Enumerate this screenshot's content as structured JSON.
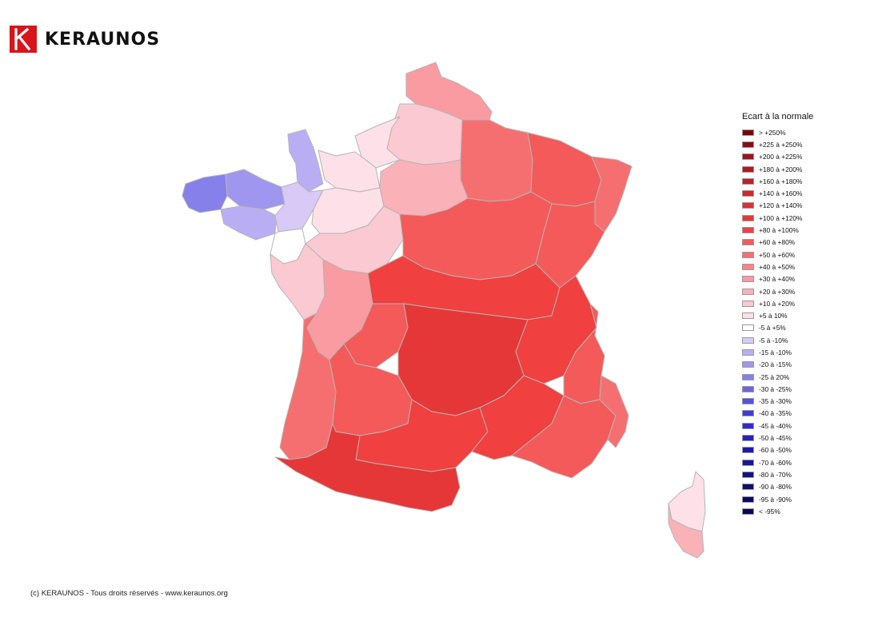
{
  "brand": {
    "name": "KERAUNOS",
    "logo_color": "#d7151b",
    "logo_icon": "keraunos-k-icon"
  },
  "legend": {
    "title": "Ecart à la normale",
    "items": [
      {
        "label": "> +250%",
        "color": "#7a0008"
      },
      {
        "label": "+225 à +250%",
        "color": "#8c0a12"
      },
      {
        "label": "+200 à +225%",
        "color": "#9e1218"
      },
      {
        "label": "+180 à +200%",
        "color": "#ad1a1f"
      },
      {
        "label": "+160 à +180%",
        "color": "#bc2126"
      },
      {
        "label": "+140 à +160%",
        "color": "#cb2a2e"
      },
      {
        "label": "+120 à +140%",
        "color": "#d93134"
      },
      {
        "label": "+100 à +120%",
        "color": "#e63738"
      },
      {
        "label": "+80 à +100%",
        "color": "#f0403f"
      },
      {
        "label": "+60 à +80%",
        "color": "#f45a5a"
      },
      {
        "label": "+50 à +60%",
        "color": "#f66f70"
      },
      {
        "label": "+40 à +50%",
        "color": "#f88487"
      },
      {
        "label": "+30 à +40%",
        "color": "#f99ba0"
      },
      {
        "label": "+20 à +30%",
        "color": "#fab1b8"
      },
      {
        "label": "+10 à +20%",
        "color": "#fbc9d1"
      },
      {
        "label": "+5 à 10%",
        "color": "#fde0e8"
      },
      {
        "label": "-5 à +5%",
        "color": "#ffffff"
      },
      {
        "label": "-5 à -10%",
        "color": "#d9c9f6"
      },
      {
        "label": "-15 à -10%",
        "color": "#b9aef4"
      },
      {
        "label": "-20 à -15%",
        "color": "#9f96ef"
      },
      {
        "label": "-25 à 20%",
        "color": "#8580ea"
      },
      {
        "label": "-30 à -25%",
        "color": "#6a66e4"
      },
      {
        "label": "-35 à -30%",
        "color": "#5450df"
      },
      {
        "label": "-40 à -35%",
        "color": "#3f3bd8"
      },
      {
        "label": "-45 à -40%",
        "color": "#2f2bcc"
      },
      {
        "label": "-50 à -45%",
        "color": "#2422bd"
      },
      {
        "label": "-60 à -50%",
        "color": "#1c1aab"
      },
      {
        "label": "-70 à -60%",
        "color": "#161598"
      },
      {
        "label": "-80 à -70%",
        "color": "#111184"
      },
      {
        "label": "-90 à -80%",
        "color": "#0d0d72"
      },
      {
        "label": "-95 à -90%",
        "color": "#0a0a62"
      },
      {
        "label": "< -95%",
        "color": "#070752"
      }
    ]
  },
  "map": {
    "regions": [
      {
        "name": "nord",
        "color": "#f99ba0"
      },
      {
        "name": "picardie",
        "color": "#fbc9d1"
      },
      {
        "name": "champagne",
        "color": "#f66f70"
      },
      {
        "name": "lorraine",
        "color": "#f45a5a"
      },
      {
        "name": "alsace",
        "color": "#f66f70"
      },
      {
        "name": "normandie-haute",
        "color": "#fde0e8"
      },
      {
        "name": "normandie-basse",
        "color": "#fde0e8"
      },
      {
        "name": "manche",
        "color": "#b9aef4"
      },
      {
        "name": "bretagne-nord",
        "color": "#9f96ef"
      },
      {
        "name": "bretagne-finistere",
        "color": "#8580ea"
      },
      {
        "name": "bretagne-sud",
        "color": "#b9aef4"
      },
      {
        "name": "mayenne-sarthe",
        "color": "#d9c9f6"
      },
      {
        "name": "loire-atlantique",
        "color": "#ffffff"
      },
      {
        "name": "ile-de-france",
        "color": "#fab1b8"
      },
      {
        "name": "centre-nord",
        "color": "#fde0e8"
      },
      {
        "name": "centre-sud",
        "color": "#fbc9d1"
      },
      {
        "name": "vendee-charentes",
        "color": "#fbc9d1"
      },
      {
        "name": "poitou",
        "color": "#f99ba0"
      },
      {
        "name": "bourgogne",
        "color": "#f45a5a"
      },
      {
        "name": "franche-comte",
        "color": "#f45a5a"
      },
      {
        "name": "auvergne-nord",
        "color": "#f0403f"
      },
      {
        "name": "limousin",
        "color": "#f45a5a"
      },
      {
        "name": "rhone-alpes",
        "color": "#f0403f"
      },
      {
        "name": "alpes",
        "color": "#f45a5a"
      },
      {
        "name": "massif-central",
        "color": "#e63738"
      },
      {
        "name": "aquitaine-cote",
        "color": "#f66f70"
      },
      {
        "name": "aquitaine-interieur",
        "color": "#f45a5a"
      },
      {
        "name": "midi-pyrenees",
        "color": "#f0403f"
      },
      {
        "name": "pyrenees",
        "color": "#e63738"
      },
      {
        "name": "languedoc",
        "color": "#f0403f"
      },
      {
        "name": "provence",
        "color": "#f45a5a"
      },
      {
        "name": "cote-azur",
        "color": "#f66f70"
      },
      {
        "name": "corse-nord",
        "color": "#fde0e8"
      },
      {
        "name": "corse-sud",
        "color": "#fab1b8"
      }
    ]
  },
  "footer": {
    "copyright": "(c) KERAUNOS - Tous droits réservés - www.keraunos.org"
  }
}
